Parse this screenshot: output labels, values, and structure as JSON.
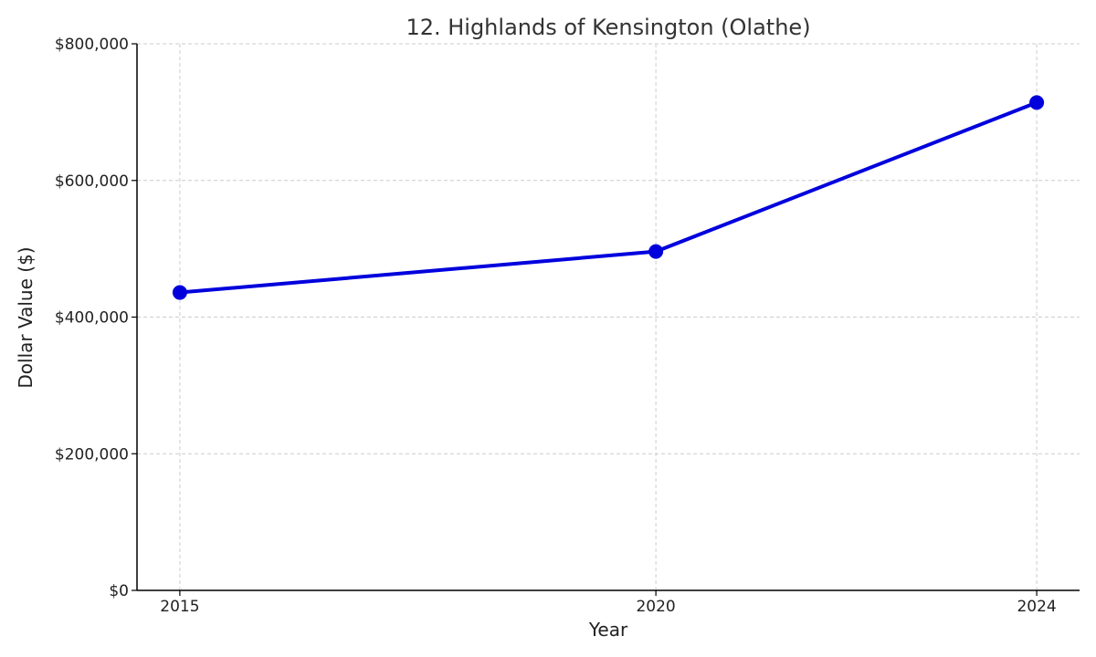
{
  "chart_data": {
    "type": "line",
    "title": "12. Highlands of Kensington (Olathe)",
    "xlabel": "Year",
    "ylabel": "Dollar Value ($)",
    "x": [
      2015,
      2020,
      2024
    ],
    "x_tick_labels": [
      "2015",
      "2020",
      "2024"
    ],
    "xlim": [
      2014.55,
      2024.45
    ],
    "ylim": [
      0,
      800000
    ],
    "y_ticks": [
      0,
      200000,
      400000,
      600000,
      800000
    ],
    "y_tick_labels": [
      "$0",
      "$200,000",
      "$400,000",
      "$600,000",
      "$800,000"
    ],
    "grid": true,
    "series": [
      {
        "values": [
          436000,
          496000,
          714000
        ],
        "color": "#0000dd",
        "marker": "circle"
      }
    ]
  }
}
